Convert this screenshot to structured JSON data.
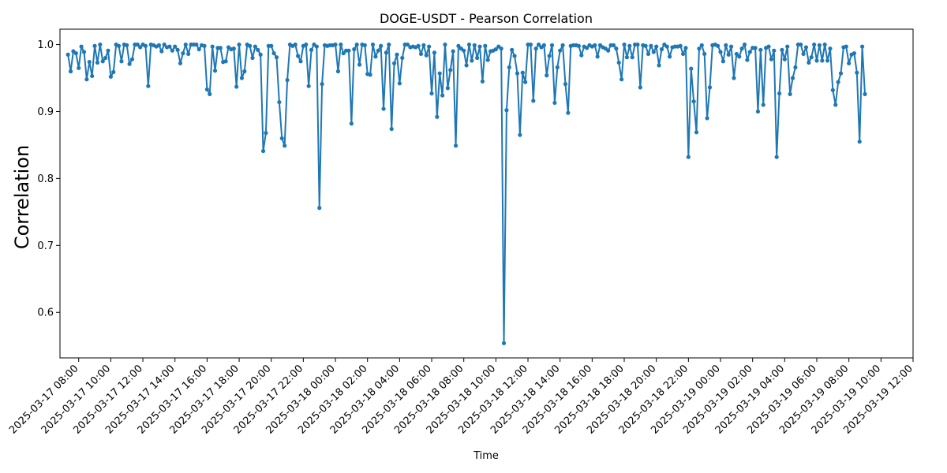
{
  "chart_data": {
    "type": "line",
    "title": "DOGE-USDT - Pearson Correlation",
    "xlabel": "Time",
    "ylabel": "Correlation",
    "grid": false,
    "line_color": "#1f77b4",
    "x_start": "2025-03-17 07:20",
    "x_step_minutes": 10,
    "xlim": [
      "2025-03-17 06:50",
      "2025-03-19 12:00"
    ],
    "ylim": [
      0.532,
      1.023
    ],
    "x_ticks": [
      "2025-03-17 08:00",
      "2025-03-17 10:00",
      "2025-03-17 12:00",
      "2025-03-17 14:00",
      "2025-03-17 16:00",
      "2025-03-17 18:00",
      "2025-03-17 20:00",
      "2025-03-17 22:00",
      "2025-03-18 00:00",
      "2025-03-18 02:00",
      "2025-03-18 04:00",
      "2025-03-18 06:00",
      "2025-03-18 08:00",
      "2025-03-18 10:00",
      "2025-03-18 12:00",
      "2025-03-18 14:00",
      "2025-03-18 16:00",
      "2025-03-18 18:00",
      "2025-03-18 20:00",
      "2025-03-18 22:00",
      "2025-03-19 00:00",
      "2025-03-19 02:00",
      "2025-03-19 04:00",
      "2025-03-19 06:00",
      "2025-03-19 08:00",
      "2025-03-19 10:00",
      "2025-03-19 12:00"
    ],
    "y_ticks": [
      0.6,
      0.7,
      0.8,
      0.9,
      1.0
    ],
    "y_tick_labels": [
      "0.6",
      "0.7",
      "0.8",
      "0.9",
      "1.0"
    ],
    "values": [
      0.985,
      0.96,
      0.99,
      0.987,
      0.965,
      0.997,
      0.989,
      0.948,
      0.974,
      0.953,
      0.998,
      0.973,
      1.0,
      0.975,
      0.98,
      0.991,
      0.952,
      0.959,
      1.0,
      0.998,
      0.975,
      1.0,
      0.999,
      0.971,
      0.978,
      1.0,
      1.0,
      0.996,
      1.0,
      0.998,
      0.938,
      1.0,
      0.999,
      0.997,
      0.999,
      0.99,
      1.0,
      0.996,
      0.997,
      0.991,
      0.997,
      0.992,
      0.972,
      0.987,
      1.0,
      0.986,
      1.0,
      1.0,
      1.0,
      0.993,
      0.999,
      0.998,
      0.933,
      0.926,
      0.997,
      0.961,
      0.995,
      0.995,
      0.974,
      0.975,
      0.996,
      0.993,
      0.994,
      0.937,
      1.0,
      0.95,
      0.96,
      1.0,
      0.998,
      0.98,
      0.997,
      0.992,
      0.985,
      0.841,
      0.868,
      0.998,
      0.998,
      0.987,
      0.981,
      0.914,
      0.86,
      0.849,
      0.947,
      1.0,
      0.998,
      1.0,
      0.983,
      0.975,
      0.998,
      1.0,
      0.938,
      0.992,
      1.0,
      0.997,
      0.756,
      0.941,
      0.999,
      0.998,
      0.999,
      0.999,
      1.0,
      0.96,
      1.0,
      0.987,
      0.991,
      0.991,
      0.882,
      0.993,
      1.0,
      0.97,
      1.0,
      0.999,
      0.956,
      0.955,
      1.0,
      0.982,
      0.991,
      0.998,
      0.904,
      0.988,
      1.0,
      0.874,
      0.972,
      0.985,
      0.942,
      0.98,
      1.0,
      1.0,
      0.996,
      0.997,
      0.996,
      0.998,
      0.986,
      0.999,
      0.984,
      0.997,
      0.927,
      0.988,
      0.892,
      0.957,
      0.924,
      1.0,
      0.935,
      0.962,
      0.99,
      0.849,
      0.998,
      0.994,
      0.991,
      0.969,
      1.0,
      0.976,
      0.999,
      0.98,
      0.997,
      0.945,
      0.998,
      0.977,
      0.99,
      0.991,
      0.993,
      0.997,
      0.994,
      0.554,
      0.902,
      0.966,
      0.992,
      0.983,
      0.957,
      0.865,
      0.958,
      0.944,
      1.0,
      1.0,
      0.916,
      0.994,
      1.0,
      0.996,
      0.999,
      0.954,
      0.983,
      0.999,
      0.913,
      0.966,
      0.991,
      0.999,
      0.941,
      0.898,
      0.998,
      0.999,
      0.999,
      0.998,
      0.984,
      0.997,
      0.995,
      0.999,
      0.997,
      0.999,
      0.982,
      0.999,
      0.996,
      0.994,
      0.991,
      0.999,
      0.999,
      0.994,
      0.973,
      0.948,
      1.0,
      0.981,
      0.998,
      0.981,
      1.0,
      1.0,
      0.936,
      0.999,
      0.998,
      0.986,
      0.998,
      0.989,
      0.997,
      0.969,
      0.993,
      1.0,
      0.997,
      0.982,
      0.996,
      0.997,
      0.997,
      0.998,
      0.986,
      0.995,
      0.832,
      0.964,
      0.915,
      0.869,
      0.994,
      0.999,
      0.986,
      0.89,
      0.936,
      0.999,
      1.0,
      0.998,
      0.989,
      0.975,
      0.999,
      0.985,
      0.997,
      0.95,
      0.986,
      0.982,
      0.994,
      1.0,
      0.977,
      0.989,
      0.995,
      0.995,
      0.9,
      0.992,
      0.91,
      0.995,
      0.997,
      0.978,
      0.991,
      0.832,
      0.927,
      0.992,
      0.978,
      0.997,
      0.926,
      0.95,
      0.966,
      1.0,
      1.0,
      0.986,
      0.996,
      0.973,
      0.981,
      1.0,
      0.976,
      0.999,
      0.976,
      1.0,
      0.976,
      0.994,
      0.932,
      0.91,
      0.944,
      0.957,
      0.996,
      0.997,
      0.972,
      0.985,
      0.987,
      0.958,
      0.855,
      0.997,
      0.926
    ]
  }
}
